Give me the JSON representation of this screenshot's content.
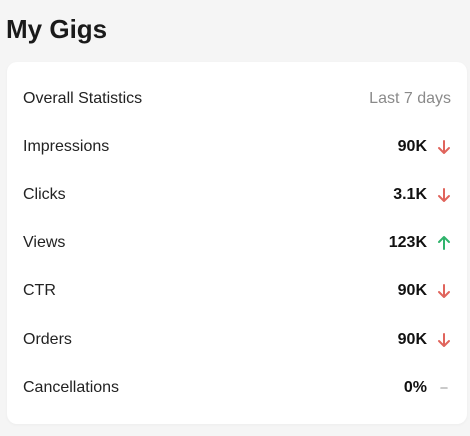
{
  "page": {
    "title": "My Gigs"
  },
  "stats_card": {
    "header_label": "Overall Statistics",
    "period": "Last 7 days",
    "rows": [
      {
        "name": "Impressions",
        "value": "90K",
        "trend": "down"
      },
      {
        "name": "Clicks",
        "value": "3.1K",
        "trend": "down"
      },
      {
        "name": "Views",
        "value": "123K",
        "trend": "up"
      },
      {
        "name": "CTR",
        "value": "90K",
        "trend": "down"
      },
      {
        "name": "Orders",
        "value": "90K",
        "trend": "down"
      },
      {
        "name": "Cancellations",
        "value": "0%",
        "trend": "flat"
      }
    ]
  },
  "colors": {
    "down": "#e0645c",
    "up": "#2fb36b",
    "flat": "#b8b8b8"
  },
  "icons": {
    "down": "arrow-down-icon",
    "up": "arrow-up-icon",
    "flat": "dash-icon"
  }
}
